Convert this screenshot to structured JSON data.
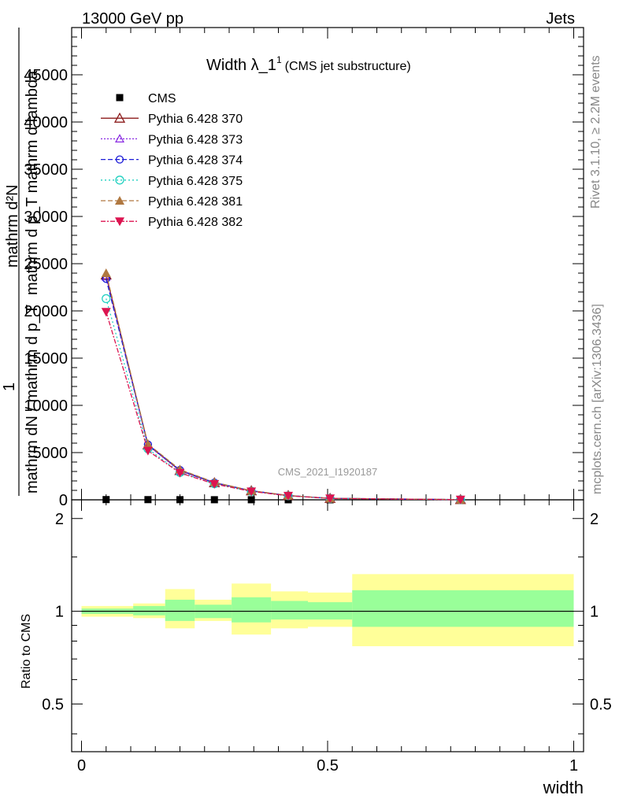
{
  "header": {
    "left": "13000 GeV pp",
    "right": "Jets"
  },
  "title": {
    "main": "Width λ_1",
    "sup": "1",
    "sub": "(CMS jet substructure)"
  },
  "watermark": "CMS_2021_I1920187",
  "side_text": {
    "rivet": "Rivet 3.1.10, ≥ 2.2M events",
    "mcplots": "mcplots.cern.ch [arXiv:1306.3436]"
  },
  "ylabel_lines": [
    "mathrm d²N",
    "mathrm d p_T mathrm d lambda",
    "1",
    "mathrm dN / mathrm d p_T"
  ],
  "ratio_ylabel": "Ratio to CMS",
  "xlabel": "width",
  "colors": {
    "CMS": "#000000",
    "p370": "#8b1a1a",
    "p373": "#8a2be2",
    "p374": "#1c1cd8",
    "p375": "#20d0c0",
    "p381": "#b07840",
    "p382": "#dc1450",
    "band_inner": "#99ff99",
    "band_outer": "#ffff99"
  },
  "chart_data": {
    "type": "line",
    "x": [
      0.05,
      0.135,
      0.2,
      0.27,
      0.345,
      0.42,
      0.505,
      0.77
    ],
    "bin_edges": [
      0.0,
      0.1,
      0.17,
      0.23,
      0.305,
      0.385,
      0.46,
      0.55,
      1.0
    ],
    "xlim": [
      -0.02,
      1.02
    ],
    "ylim": [
      0,
      50000
    ],
    "yticks": [
      0,
      5000,
      10000,
      15000,
      20000,
      25000,
      30000,
      35000,
      40000,
      45000
    ],
    "ytick_labels": [
      "0",
      "5000",
      "10000",
      "15000",
      "20000",
      "25000",
      "30000",
      "35000",
      "40000",
      "45000"
    ],
    "xticks": [
      0,
      0.5,
      1
    ],
    "xtick_labels": [
      "0",
      "0.5",
      "1"
    ],
    "series": [
      {
        "name": "CMS",
        "key": "CMS",
        "marker": "square",
        "dash": "",
        "values": [
          25,
          20,
          15,
          10,
          8,
          5,
          3,
          1
        ]
      },
      {
        "name": "Pythia 6.428 370",
        "key": "p370",
        "marker": "triangle-open",
        "dash": "",
        "values": [
          23800,
          5800,
          3100,
          1800,
          950,
          450,
          150,
          20
        ]
      },
      {
        "name": "Pythia 6.428 373",
        "key": "p373",
        "marker": "triangle-open-small",
        "dash": "2,2",
        "values": [
          23600,
          5750,
          3050,
          1780,
          940,
          445,
          148,
          20
        ]
      },
      {
        "name": "Pythia 6.428 374",
        "key": "p374",
        "marker": "circle-open",
        "dash": "6,3",
        "values": [
          23400,
          5850,
          3150,
          1820,
          960,
          455,
          152,
          21
        ]
      },
      {
        "name": "Pythia 6.428 375",
        "key": "p375",
        "marker": "circle-open-big",
        "dash": "2,3",
        "values": [
          21300,
          5400,
          2900,
          1700,
          900,
          430,
          145,
          19
        ]
      },
      {
        "name": "Pythia 6.428 381",
        "key": "p381",
        "marker": "triangle-filled",
        "dash": "6,3",
        "values": [
          24000,
          5900,
          3200,
          1850,
          970,
          460,
          155,
          21
        ]
      },
      {
        "name": "Pythia 6.428 382",
        "key": "p382",
        "marker": "triangle-down-filled",
        "dash": "6,2,2,2",
        "values": [
          19900,
          5200,
          2850,
          1680,
          890,
          425,
          143,
          19
        ]
      }
    ],
    "ratio": {
      "ylim": [
        0.35,
        2.3
      ],
      "log": true,
      "yticks": [
        0.5,
        1,
        2
      ],
      "ytick_labels": [
        "0.5",
        "1",
        "2"
      ],
      "inner": [
        [
          0.98,
          1.02
        ],
        [
          0.98,
          1.02
        ],
        [
          0.97,
          1.04
        ],
        [
          0.93,
          1.09
        ],
        [
          0.95,
          1.05
        ],
        [
          0.92,
          1.11
        ],
        [
          0.94,
          1.08
        ],
        [
          0.94,
          1.07
        ],
        [
          0.89,
          1.17
        ]
      ],
      "outer": [
        [
          0.96,
          1.04
        ],
        [
          0.96,
          1.04
        ],
        [
          0.95,
          1.06
        ],
        [
          0.88,
          1.18
        ],
        [
          0.93,
          1.09
        ],
        [
          0.84,
          1.23
        ],
        [
          0.88,
          1.16
        ],
        [
          0.89,
          1.15
        ],
        [
          0.77,
          1.32
        ]
      ]
    }
  }
}
